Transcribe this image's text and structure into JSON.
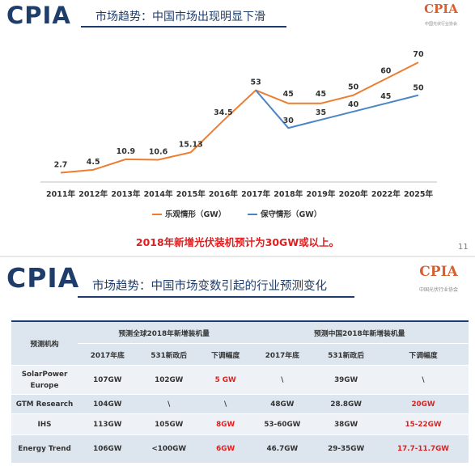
{
  "slide1": {
    "brand": "CPIA",
    "subtitle": "市场趋势：中国市场出现明显下滑",
    "logo": {
      "text": "CPIA",
      "sub": "中国光伏行业协会"
    },
    "conclusion": "2018年新增光伏装机预计为30GW或以上。",
    "page_number": "11"
  },
  "slide2": {
    "brand": "CPIA",
    "subtitle": "市场趋势：中国市场变数引起的行业预测变化",
    "logo": {
      "text": "CPIA",
      "sub": "中国光伏行业协会"
    },
    "table": {
      "col_agency": "预测机构",
      "group_global": "预测全球2018年新增装机量",
      "group_china": "预测中国2018年新增装机量",
      "sub_headers": [
        "2017年底",
        "531新政后",
        "下调幅度",
        "2017年底",
        "531新政后",
        "下调幅度"
      ],
      "rows": [
        {
          "agency": "SolarPower Europe",
          "cells": [
            "107GW",
            "102GW",
            "5 GW",
            "\\",
            "39GW",
            "\\"
          ]
        },
        {
          "agency": "GTM Research",
          "cells": [
            "104GW",
            "\\",
            "\\",
            "48GW",
            "28.8GW",
            "20GW"
          ]
        },
        {
          "agency": "IHS",
          "cells": [
            "113GW",
            "105GW",
            "8GW",
            "53-60GW",
            "38GW",
            "15-22GW"
          ]
        },
        {
          "agency": "Energy Trend",
          "cells": [
            "106GW",
            "<100GW",
            "6GW",
            "46.7GW",
            "29-35GW",
            "17.7-11.7GW"
          ]
        }
      ]
    }
  },
  "colors": {
    "brand_navy": "#1f3d6b",
    "optimistic": "#ed7d31",
    "conservative": "#4a86c5",
    "highlight_red": "#e02020"
  },
  "chart_data": {
    "type": "line",
    "categories": [
      "2011年",
      "2012年",
      "2013年",
      "2014年",
      "2015年",
      "2016年",
      "2017年",
      "2018年",
      "2019年",
      "2020年",
      "2022年",
      "2025年"
    ],
    "series": [
      {
        "name": "乐观情形（GW）",
        "color": "#ed7d31",
        "values": [
          2.7,
          4.5,
          10.9,
          10.6,
          15.13,
          34.5,
          53,
          45,
          45,
          50,
          60,
          70
        ]
      },
      {
        "name": "保守情形（GW）",
        "color": "#4a86c5",
        "values": [
          null,
          null,
          null,
          null,
          null,
          null,
          53,
          30,
          35,
          40,
          45,
          50
        ]
      }
    ],
    "data_labels": [
      "2.7",
      "4.5",
      "10.9",
      "10.6",
      "15.13",
      "34.5",
      "53",
      "45",
      "45",
      "50",
      "60",
      "70"
    ],
    "conservative_labels": [
      "",
      "",
      "",
      "",
      "",
      "",
      "",
      "30",
      "35",
      "40",
      "45",
      "50"
    ],
    "ylim": [
      0,
      75
    ],
    "grid": false,
    "legend_position": "bottom"
  }
}
